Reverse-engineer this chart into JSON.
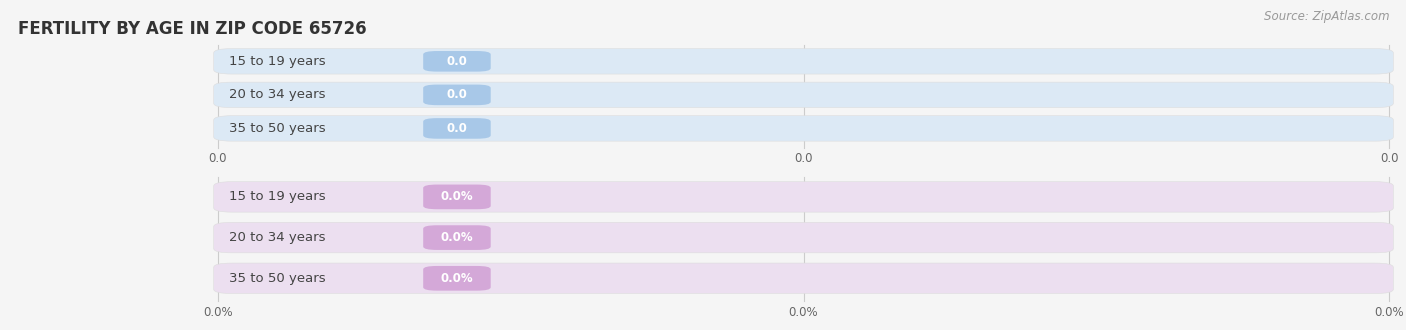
{
  "title": "FERTILITY BY AGE IN ZIP CODE 65726",
  "source": "Source: ZipAtlas.com",
  "top_group": {
    "labels": [
      "15 to 19 years",
      "20 to 34 years",
      "35 to 50 years"
    ],
    "values": [
      0.0,
      0.0,
      0.0
    ],
    "bar_bg_color": "#dce9f5",
    "bar_value_bg_color": "#a8c8e8",
    "label_color": "#444444",
    "x_tick_labels": [
      "0.0",
      "0.0",
      "0.0"
    ],
    "x_tick_positions": [
      0.0,
      0.5,
      1.0
    ],
    "is_percentage": false
  },
  "bottom_group": {
    "labels": [
      "15 to 19 years",
      "20 to 34 years",
      "35 to 50 years"
    ],
    "values": [
      0.0,
      0.0,
      0.0
    ],
    "bar_bg_color": "#ecdff0",
    "bar_value_bg_color": "#d4a8d8",
    "label_color": "#444444",
    "x_tick_labels": [
      "0.0%",
      "0.0%",
      "0.0%"
    ],
    "x_tick_positions": [
      0.0,
      0.5,
      1.0
    ],
    "is_percentage": true
  },
  "value_color": "#ffffff",
  "background_color": "#f5f5f5",
  "title_fontsize": 12,
  "label_fontsize": 9.5,
  "value_fontsize": 8.5,
  "tick_fontsize": 8.5,
  "source_fontsize": 8.5,
  "fig_width": 14.06,
  "fig_height": 3.3
}
